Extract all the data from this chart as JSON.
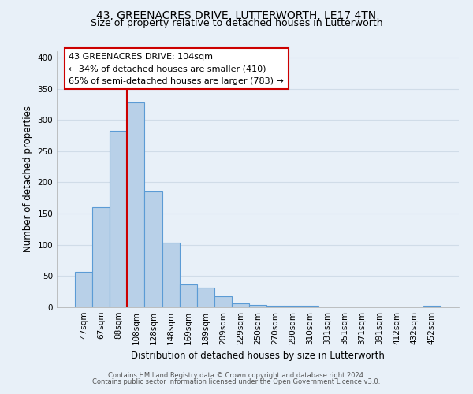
{
  "title": "43, GREENACRES DRIVE, LUTTERWORTH, LE17 4TN",
  "subtitle": "Size of property relative to detached houses in Lutterworth",
  "xlabel": "Distribution of detached houses by size in Lutterworth",
  "ylabel": "Number of detached properties",
  "bar_labels": [
    "47sqm",
    "67sqm",
    "88sqm",
    "108sqm",
    "128sqm",
    "148sqm",
    "169sqm",
    "189sqm",
    "209sqm",
    "229sqm",
    "250sqm",
    "270sqm",
    "290sqm",
    "310sqm",
    "331sqm",
    "351sqm",
    "371sqm",
    "391sqm",
    "412sqm",
    "432sqm",
    "452sqm"
  ],
  "bar_values": [
    57,
    160,
    283,
    328,
    185,
    103,
    37,
    32,
    18,
    6,
    4,
    3,
    2,
    2,
    0,
    0,
    0,
    0,
    0,
    0,
    3
  ],
  "bar_color": "#b8d0e8",
  "bar_edge_color": "#5b9bd5",
  "vline_color": "#cc0000",
  "ylim": [
    0,
    410
  ],
  "yticks": [
    0,
    50,
    100,
    150,
    200,
    250,
    300,
    350,
    400
  ],
  "annotation_title": "43 GREENACRES DRIVE: 104sqm",
  "annotation_line1": "← 34% of detached houses are smaller (410)",
  "annotation_line2": "65% of semi-detached houses are larger (783) →",
  "annotation_box_color": "#ffffff",
  "annotation_box_edge": "#cc0000",
  "footer_line1": "Contains HM Land Registry data © Crown copyright and database right 2024.",
  "footer_line2": "Contains public sector information licensed under the Open Government Licence v3.0.",
  "background_color": "#e8f0f8",
  "grid_color": "#d0dce8",
  "title_fontsize": 10,
  "subtitle_fontsize": 9
}
